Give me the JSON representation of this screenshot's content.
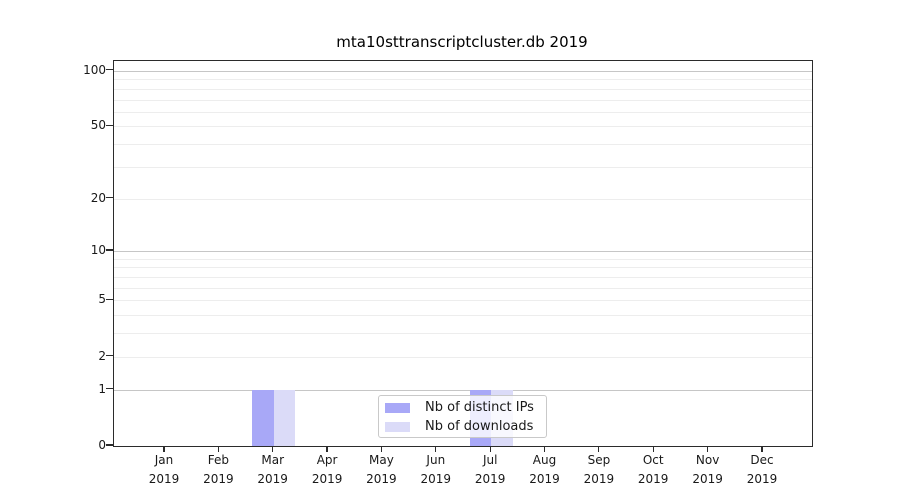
{
  "chart_data": {
    "type": "bar",
    "title": "mta10sttranscriptcluster.db 2019",
    "categories": [
      "Jan",
      "Feb",
      "Mar",
      "Apr",
      "May",
      "Jun",
      "Jul",
      "Aug",
      "Sep",
      "Oct",
      "Nov",
      "Dec"
    ],
    "category_year": "2019",
    "series": [
      {
        "name": "Nb of distinct IPs",
        "color": "#a8a8f7",
        "values": [
          0,
          0,
          1,
          0,
          0,
          0,
          1,
          0,
          0,
          0,
          0,
          0
        ]
      },
      {
        "name": "Nb of downloads",
        "color": "#dbdbf8",
        "values": [
          0,
          0,
          1,
          0,
          0,
          0,
          1,
          0,
          0,
          0,
          0,
          0
        ]
      }
    ],
    "yticks": [
      0,
      1,
      2,
      5,
      10,
      20,
      50,
      100
    ],
    "grid_major": [
      1,
      10,
      100
    ],
    "grid_minor": [
      2,
      3,
      4,
      5,
      6,
      7,
      8,
      9,
      20,
      30,
      40,
      50,
      60,
      70,
      80,
      90
    ],
    "ylim": [
      0,
      113
    ],
    "yscale": "log1p",
    "xlabel": "",
    "ylabel": "",
    "grid": true,
    "legend_position": "lower center"
  },
  "colors": {
    "major_grid": "#c6c6c6",
    "minor_grid": "#ededed",
    "spine": "#2b2b2b",
    "text": "#191919"
  }
}
